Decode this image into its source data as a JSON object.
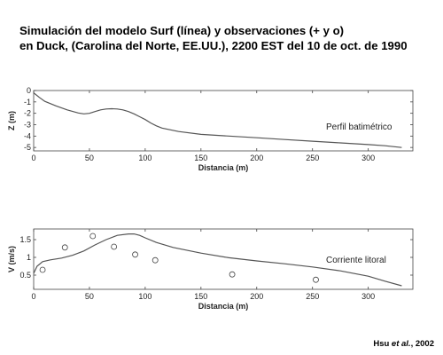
{
  "title": {
    "line1": "Simulación del modelo Surf (línea) y observaciones (+ y o)",
    "line2": "en Duck, (Carolina del Norte, EE.UU.), 2200 EST del 10 de oct. de 1990"
  },
  "credit": {
    "author": "Hsu",
    "etal": "et al.",
    "year": ", 2002"
  },
  "chart_data": [
    {
      "type": "line",
      "xlabel": "Distancia (m)",
      "ylabel": "Z (m)",
      "annotation": "Perfil batimétrico",
      "xlim": [
        0,
        340
      ],
      "ylim": [
        -5.3,
        0
      ],
      "xticks": [
        0,
        50,
        100,
        150,
        200,
        250,
        300
      ],
      "yticks": [
        0,
        -1,
        -2,
        -3,
        -4,
        -5
      ],
      "grid": false,
      "series": [
        {
          "color": "#555555",
          "x": [
            0,
            5,
            10,
            20,
            30,
            40,
            45,
            50,
            55,
            60,
            65,
            70,
            75,
            80,
            85,
            90,
            95,
            100,
            105,
            110,
            115,
            130,
            150,
            175,
            200,
            225,
            250,
            275,
            300,
            315,
            330
          ],
          "y": [
            -0.2,
            -0.6,
            -0.95,
            -1.35,
            -1.7,
            -1.97,
            -2.05,
            -2.0,
            -1.85,
            -1.7,
            -1.62,
            -1.6,
            -1.62,
            -1.7,
            -1.85,
            -2.05,
            -2.3,
            -2.55,
            -2.85,
            -3.1,
            -3.3,
            -3.6,
            -3.85,
            -4.0,
            -4.15,
            -4.3,
            -4.45,
            -4.6,
            -4.75,
            -4.85,
            -5.0
          ]
        }
      ]
    },
    {
      "type": "line",
      "xlabel": "Distancia (m)",
      "ylabel": "V (m/s)",
      "annotation": "Corriente litoral",
      "xlim": [
        0,
        340
      ],
      "ylim": [
        0.1,
        1.8
      ],
      "xticks": [
        0,
        50,
        100,
        150,
        200,
        250,
        300
      ],
      "yticks": [
        0.5,
        1,
        1.5
      ],
      "grid": false,
      "series": [
        {
          "color": "#555555",
          "x": [
            0,
            3,
            8,
            15,
            25,
            35,
            45,
            55,
            65,
            75,
            85,
            90,
            95,
            100,
            110,
            125,
            150,
            175,
            200,
            225,
            250,
            275,
            300,
            315,
            330
          ],
          "y": [
            0.55,
            0.75,
            0.88,
            0.93,
            0.98,
            1.06,
            1.18,
            1.35,
            1.5,
            1.62,
            1.66,
            1.66,
            1.62,
            1.55,
            1.42,
            1.28,
            1.12,
            0.99,
            0.9,
            0.82,
            0.73,
            0.62,
            0.47,
            0.33,
            0.2
          ]
        }
      ],
      "scatter": {
        "marker": "o",
        "x": [
          8,
          28,
          53,
          72,
          91,
          109,
          178,
          253
        ],
        "y": [
          0.65,
          1.28,
          1.6,
          1.3,
          1.08,
          0.92,
          0.52,
          0.37
        ]
      }
    }
  ]
}
